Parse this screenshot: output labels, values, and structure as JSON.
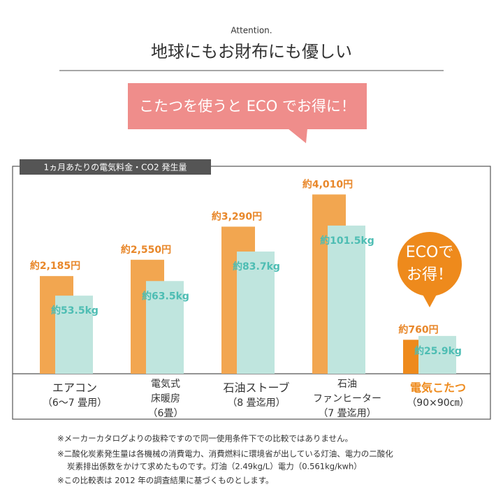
{
  "header": {
    "subtitle": "Attention.",
    "title": "地球にもお財布にも優しい",
    "banner": "こたつを使うと ECO でお得に！"
  },
  "chart_data": {
    "type": "bar",
    "title": "1ヵ月あたりの電気料金・CO2 発生量",
    "categories": [
      [
        "エアコン",
        "（6～7 畳用）"
      ],
      [
        "電気式",
        "床暖房",
        "（6畳）"
      ],
      [
        "石油ストーブ",
        "（8 畳迄用）"
      ],
      [
        "石油",
        "ファンヒーター",
        "（7 畳迄用）"
      ],
      [
        "電気こたつ",
        "（90×90㎝）"
      ]
    ],
    "series": [
      {
        "colors": [
          "#f2a650",
          "#f2a650",
          "#f2a650",
          "#f2a650",
          "#ee8a1c"
        ],
        "values": [
          2185,
          2550,
          3290,
          4010,
          760
        ],
        "value_labels": [
          "約2,185円",
          "約2,550円",
          "約3,290円",
          "約4,010円",
          "約760円"
        ]
      },
      {
        "color": "#bfe5de",
        "values": [
          53.5,
          63.5,
          83.7,
          101.5,
          25.9
        ],
        "value_labels": [
          "約53.5kg",
          "約63.5kg",
          "約83.7kg",
          "約101.5kg",
          "約25.9kg"
        ]
      }
    ],
    "annotation": [
      "ECOで",
      "お得！"
    ]
  },
  "notes": [
    "※メーカーカタログよりの抜粋ですので同一使用条件下での比較ではありません。",
    "※二酸化炭素発生量は各機械の消費電力、消費燃料に環境省が出している灯油、電力の二酸化",
    "炭素排出係数をかけて求めたものです。灯油（2.49kg/L）電力（0.561kg/kwh）",
    "※この比較表は 2012 年の調査結果に基づくものとします。"
  ]
}
